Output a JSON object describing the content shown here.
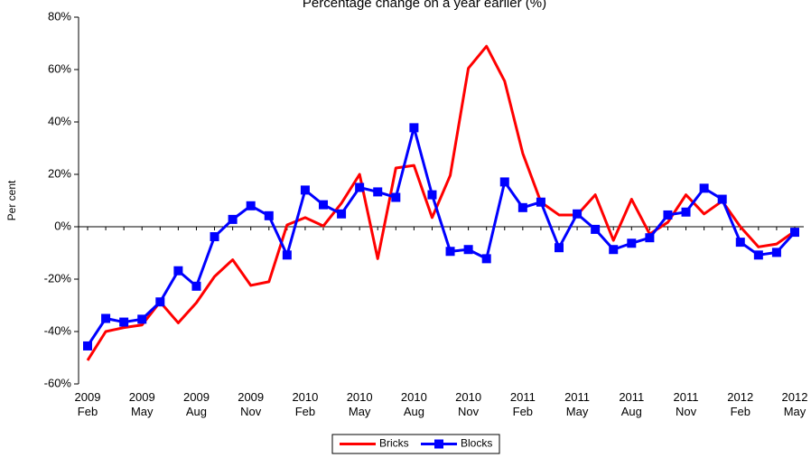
{
  "chart_data": {
    "type": "line",
    "title": "Percentage change on a year earlier (%)",
    "y_label": "Per cent",
    "categories": [
      "2009 Feb",
      null,
      null,
      "2009 May",
      null,
      null,
      "2009 Aug",
      null,
      null,
      "2009 Nov",
      null,
      null,
      "2010 Feb",
      null,
      null,
      "2010 May",
      null,
      null,
      "2010 Aug",
      null,
      null,
      "2010 Nov",
      null,
      null,
      "2011 Feb",
      null,
      null,
      "2011 May",
      null,
      null,
      "2011 Aug",
      null,
      null,
      "2011 Nov",
      null,
      null,
      "2012 Feb",
      null,
      null,
      "2012 May"
    ],
    "series": [
      {
        "name": "Bricks",
        "color": "#ff0000",
        "marker": "none",
        "values": [
          -51,
          -40,
          -38.5,
          -37.5,
          -28.7,
          -36.7,
          -29,
          -19,
          -12.6,
          -22.4,
          -21,
          0.7,
          3.5,
          0.3,
          9,
          20,
          -12.2,
          22.4,
          23.4,
          3.5,
          19.6,
          60.5,
          68.9,
          55.6,
          28,
          9.4,
          4.5,
          4.5,
          12.2,
          -5.2,
          10.5,
          -2.8,
          1.7,
          12.2,
          4.9,
          9.8,
          0,
          -7.7,
          -6.6,
          -1.7
        ]
      },
      {
        "name": "Blocks",
        "color": "#0000ff",
        "marker": "square",
        "values": [
          -45.5,
          -35,
          -36.4,
          -35.3,
          -28.7,
          -16.8,
          -22.7,
          -3.8,
          2.8,
          8,
          4.2,
          -10.8,
          14,
          8.4,
          4.9,
          15,
          13.3,
          11.2,
          37.8,
          12.2,
          -9.4,
          -8.7,
          -12.2,
          17.1,
          7.3,
          9.4,
          -8,
          4.9,
          -1,
          -8.7,
          -6.3,
          -4.2,
          4.5,
          5.6,
          14.7,
          10.5,
          -5.9,
          -10.8,
          -9.8,
          -2.1
        ]
      }
    ],
    "ylim": [
      -60,
      80
    ],
    "yticks": [
      {
        "value": -60,
        "label": "-60%"
      },
      {
        "value": -40,
        "label": "-40%"
      },
      {
        "value": -20,
        "label": "-20%"
      },
      {
        "value": 0,
        "label": "0%"
      },
      {
        "value": 20,
        "label": "20%"
      },
      {
        "value": 40,
        "label": "40%"
      },
      {
        "value": 60,
        "label": "60%"
      },
      {
        "value": 80,
        "label": "80%"
      }
    ],
    "grid": false,
    "legend": "bottom"
  }
}
